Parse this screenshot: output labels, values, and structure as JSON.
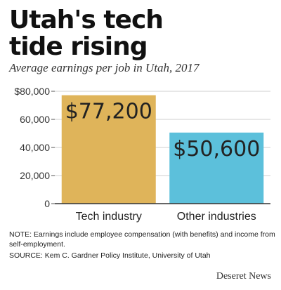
{
  "header": {
    "title_line1": "Utah's tech",
    "title_line2": "tide rising",
    "subtitle": "Average earnings per job in Utah, 2017"
  },
  "chart_data": {
    "type": "bar",
    "title": "",
    "xlabel": "",
    "ylabel": "",
    "categories": [
      "Tech industry",
      "Other industries"
    ],
    "values": [
      77200,
      50600
    ],
    "data_labels": [
      "$77,200",
      "$50,600"
    ],
    "ylim": [
      0,
      80000
    ],
    "yticks": [
      0,
      20000,
      40000,
      60000,
      80000
    ],
    "ytick_labels": [
      "0",
      "20,000",
      "40,000",
      "60,000",
      "$80,000"
    ],
    "grid": true,
    "colors": [
      "#dfb45a",
      "#5cc0db"
    ]
  },
  "footer": {
    "note": "NOTE: Earnings include employee compensation (with benefits) and income from self-employment.",
    "source": "SOURCE: Kem C. Gardner Policy Institute, University of Utah",
    "brand": "Deseret News"
  }
}
